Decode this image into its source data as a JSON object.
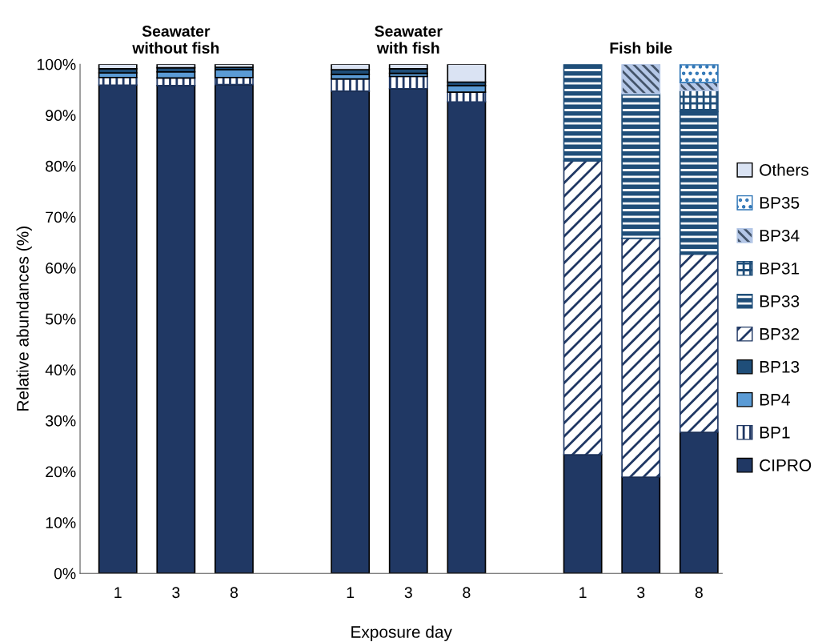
{
  "chart_data": {
    "type": "bar",
    "stacked": true,
    "categories": [
      "1",
      "3",
      "8",
      null,
      "1",
      "3",
      "8",
      null,
      "1",
      "3",
      "8"
    ],
    "xlabel": "Exposure day",
    "ylabel": "Relative abundances (%)",
    "ylim": [
      0,
      100
    ],
    "yticks": [
      {
        "value": 0,
        "label": "0%"
      },
      {
        "value": 10,
        "label": "10%"
      },
      {
        "value": 20,
        "label": "20%"
      },
      {
        "value": 30,
        "label": "30%"
      },
      {
        "value": 40,
        "label": "40%"
      },
      {
        "value": 50,
        "label": "50%"
      },
      {
        "value": 60,
        "label": "60%"
      },
      {
        "value": 70,
        "label": "70%"
      },
      {
        "value": 80,
        "label": "80%"
      },
      {
        "value": 90,
        "label": "90%"
      },
      {
        "value": 100,
        "label": "100%"
      }
    ],
    "annotations": [
      "Seawater\nwithout fish",
      "Seawater\nwith fish",
      "Fish bile"
    ],
    "grid": false,
    "legend": "right",
    "series": [
      {
        "name": "CIPRO",
        "color": "#203864",
        "values": [
          95.9,
          95.8,
          96.0,
          null,
          94.7,
          95.2,
          92.6,
          null,
          23.3,
          18.9,
          27.7
        ]
      },
      {
        "name": "BP1",
        "color": "#203864",
        "values": [
          1.5,
          1.5,
          1.4,
          null,
          2.4,
          2.4,
          1.9,
          null,
          0,
          0,
          0
        ]
      },
      {
        "name": "BP4",
        "color": "#5b9bd5",
        "values": [
          0.9,
          1.2,
          1.5,
          null,
          0.9,
          0.6,
          1.3,
          null,
          0,
          0,
          0
        ]
      },
      {
        "name": "BP13",
        "color": "#1f4e79",
        "values": [
          0.8,
          0.8,
          0.5,
          null,
          0.9,
          0.9,
          0.7,
          null,
          0,
          0,
          0
        ]
      },
      {
        "name": "BP32",
        "color": "#203864",
        "values": [
          0,
          0,
          0,
          null,
          0,
          0,
          0,
          null,
          57.7,
          46.9,
          35.0
        ]
      },
      {
        "name": "BP33",
        "color": "#1f4e79",
        "values": [
          0,
          0,
          0,
          null,
          0,
          0,
          0,
          null,
          19.0,
          28.4,
          28.0
        ]
      },
      {
        "name": "BP31",
        "color": "#1f4e79",
        "values": [
          0,
          0,
          0,
          null,
          0,
          0,
          0,
          null,
          0,
          0,
          4.1
        ]
      },
      {
        "name": "BP34",
        "color": "#b4c7e7",
        "values": [
          0,
          0,
          0,
          null,
          0,
          0,
          0,
          null,
          0,
          5.8,
          1.6
        ]
      },
      {
        "name": "BP35",
        "color": "#2e75b6",
        "values": [
          0,
          0,
          0,
          null,
          0,
          0,
          0,
          null,
          0,
          0,
          3.5
        ]
      },
      {
        "name": "Others",
        "color": "#dae3f3",
        "values": [
          0.9,
          0.7,
          0.6,
          null,
          1.1,
          0.9,
          3.5,
          null,
          0,
          0,
          0
        ]
      }
    ]
  }
}
